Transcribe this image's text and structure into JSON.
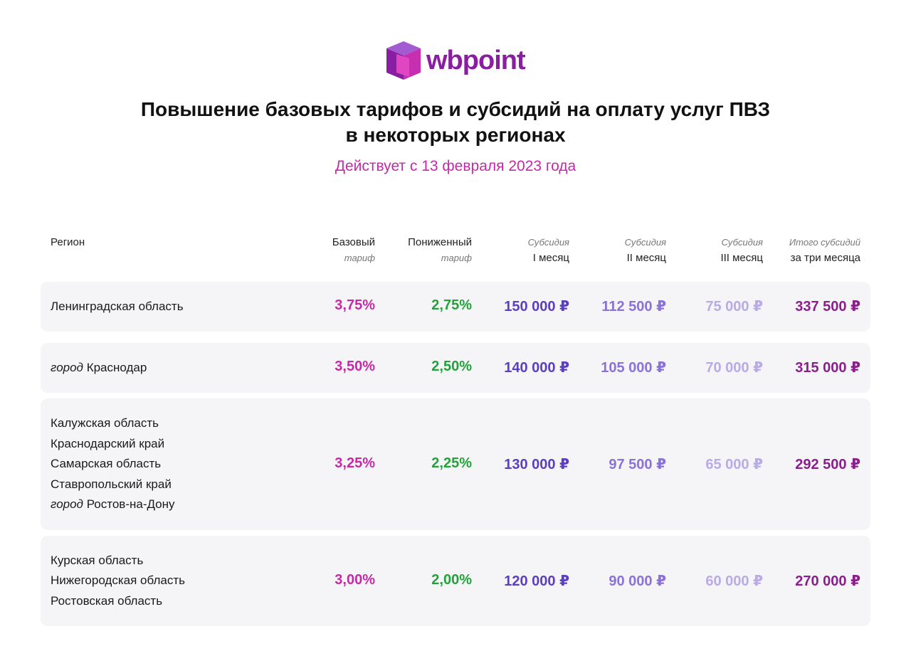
{
  "logo": {
    "text": "wbpoint"
  },
  "title": {
    "line1": "Повышение базовых тарифов и субсидий на оплату услуг ПВЗ",
    "line2": "в некоторых регионах"
  },
  "subtitle": "Действует с 13 февраля 2023 года",
  "headers": {
    "region": "Регион",
    "base": {
      "main": "Базовый",
      "sub": "тариф"
    },
    "reduced": {
      "main": "Пониженный",
      "sub": "тариф"
    },
    "sub1": {
      "top": "Субсидия",
      "main": "I месяц"
    },
    "sub2": {
      "top": "Субсидия",
      "main": "II месяц"
    },
    "sub3": {
      "top": "Субсидия",
      "main": "III месяц"
    },
    "total": {
      "top": "Итого  субсидий",
      "main": "за три месяца"
    }
  },
  "rows": [
    {
      "regions": [
        {
          "prefix": "",
          "name": "Ленинградская область"
        }
      ],
      "base": "3,75%",
      "reduced": "2,75%",
      "sub1": "150 000 ₽",
      "sub2": "112 500 ₽",
      "sub3": "75 000 ₽",
      "total": "337 500 ₽"
    },
    {
      "regions": [
        {
          "prefix": "город",
          "name": "Краснодар"
        }
      ],
      "base": "3,50%",
      "reduced": "2,50%",
      "sub1": "140 000 ₽",
      "sub2": "105 000 ₽",
      "sub3": "70 000 ₽",
      "total": "315 000 ₽"
    },
    {
      "regions": [
        {
          "prefix": "",
          "name": "Калужская область"
        },
        {
          "prefix": "",
          "name": "Краснодарский край"
        },
        {
          "prefix": "",
          "name": "Самарская область"
        },
        {
          "prefix": "",
          "name": "Ставропольский край"
        },
        {
          "prefix": "город",
          "name": "Ростов-на-Дону"
        }
      ],
      "base": "3,25%",
      "reduced": "2,25%",
      "sub1": "130 000 ₽",
      "sub2": "97 500 ₽",
      "sub3": "65 000 ₽",
      "total": "292 500 ₽"
    },
    {
      "regions": [
        {
          "prefix": "",
          "name": "Курская область"
        },
        {
          "prefix": "",
          "name": "Нижегородская область"
        },
        {
          "prefix": "",
          "name": "Ростовская область"
        }
      ],
      "base": "3,00%",
      "reduced": "2,00%",
      "sub1": "120 000 ₽",
      "sub2": "90 000 ₽",
      "sub3": "60 000 ₽",
      "total": "270 000 ₽"
    }
  ],
  "colors": {
    "base": "#c42aa8",
    "reduced": "#22a33a",
    "sub1": "#5a3fc0",
    "sub2": "#8a72d8",
    "sub3": "#b8abe6",
    "total": "#8a1e8c",
    "rowBg": "#f5f5f7"
  }
}
